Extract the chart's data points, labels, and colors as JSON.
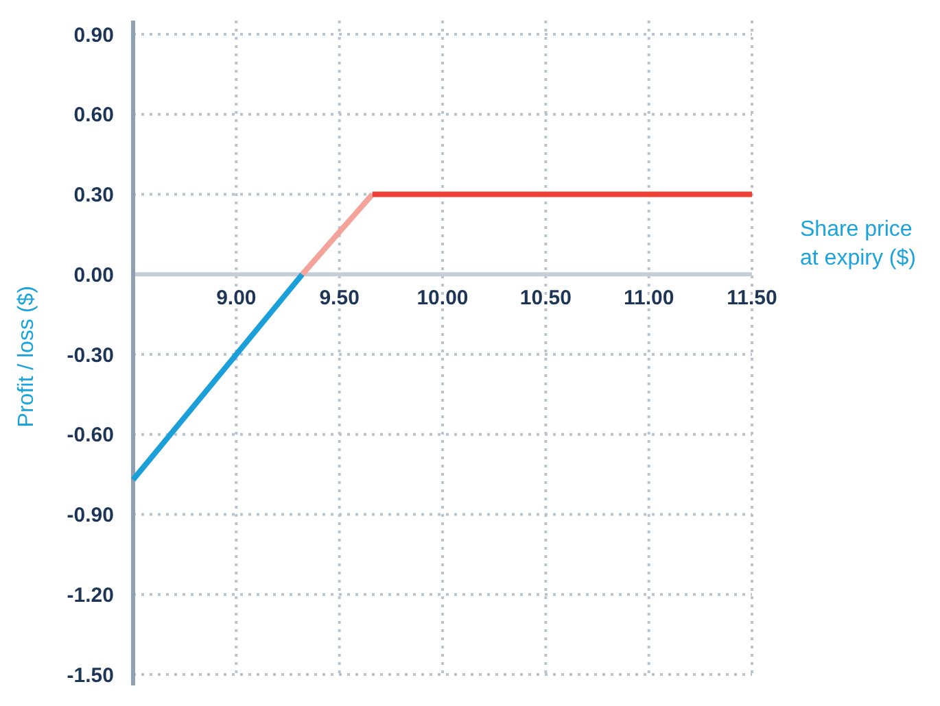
{
  "chart_data": {
    "type": "line",
    "xlabel": "Share price at expiry ($)",
    "ylabel": "Profit / loss ($)",
    "xlim": [
      8.5,
      11.5
    ],
    "ylim": [
      -1.5,
      0.9
    ],
    "xticks": [
      {
        "value": 9,
        "label": "9.00"
      },
      {
        "value": 9.5,
        "label": "9.50"
      },
      {
        "value": 10,
        "label": "10.00"
      },
      {
        "value": 10.5,
        "label": "10.50"
      },
      {
        "value": 11,
        "label": "11.00"
      },
      {
        "value": 11.5,
        "label": "11.50"
      }
    ],
    "yticks": [
      {
        "value": 0.9,
        "label": "0.90"
      },
      {
        "value": 0.6,
        "label": "0.60"
      },
      {
        "value": 0.3,
        "label": "0.30"
      },
      {
        "value": 0,
        "label": "0.00"
      },
      {
        "value": -0.3,
        "label": "-0.30"
      },
      {
        "value": -0.6,
        "label": "-0.60"
      },
      {
        "value": -0.9,
        "label": "-0.90"
      },
      {
        "value": -1.2,
        "label": "-1.20"
      },
      {
        "value": -1.5,
        "label": "-1.50"
      }
    ],
    "grid": true,
    "marker": "none",
    "line_style": "solid",
    "series": [
      {
        "color": "#1a9fd8",
        "x": [
          8.5,
          9.32
        ],
        "values": [
          -0.77,
          0
        ]
      },
      {
        "color": "#f4a39a",
        "x": [
          9.32,
          9.66
        ],
        "values": [
          0,
          0.3
        ]
      },
      {
        "color": "#ee4035",
        "x": [
          9.66,
          11.5
        ],
        "values": [
          0.3,
          0.3
        ]
      }
    ]
  }
}
